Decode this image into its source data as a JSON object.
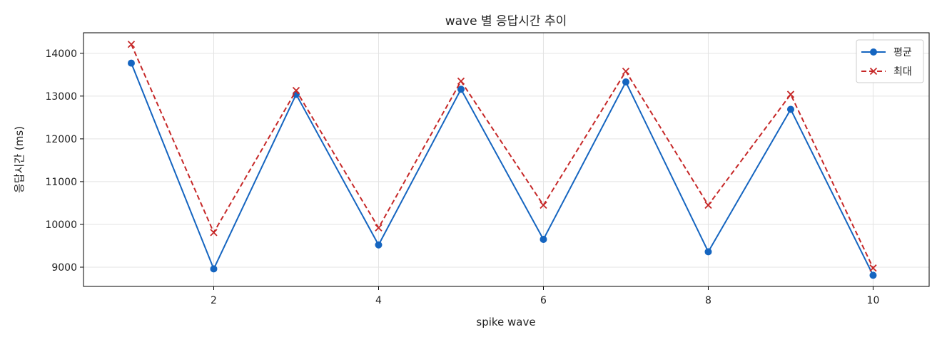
{
  "chart_data": {
    "type": "line",
    "title": "wave 별 응답시간 추이",
    "xlabel": "spike wave",
    "ylabel": "응답시간 (ms)",
    "xlim": [
      0.42,
      10.68
    ],
    "ylim": [
      8550,
      14480
    ],
    "xticks": [
      2,
      4,
      6,
      8,
      10
    ],
    "yticks": [
      9000,
      10000,
      11000,
      12000,
      13000,
      14000
    ],
    "grid": true,
    "legend_position": "top-right",
    "x": [
      1,
      2,
      3,
      4,
      5,
      6,
      7,
      8,
      9,
      10
    ],
    "series": [
      {
        "name": "평균",
        "color": "#1565c0",
        "line_style": "solid",
        "marker": "circle",
        "values": [
          13770,
          8960,
          13040,
          9520,
          13160,
          9650,
          13330,
          9360,
          12690,
          8810
        ]
      },
      {
        "name": "최대",
        "color": "#c62828",
        "line_style": "dashed",
        "marker": "x",
        "values": [
          14210,
          9810,
          13130,
          9920,
          13350,
          10450,
          13580,
          10450,
          13040,
          8980
        ]
      }
    ]
  }
}
